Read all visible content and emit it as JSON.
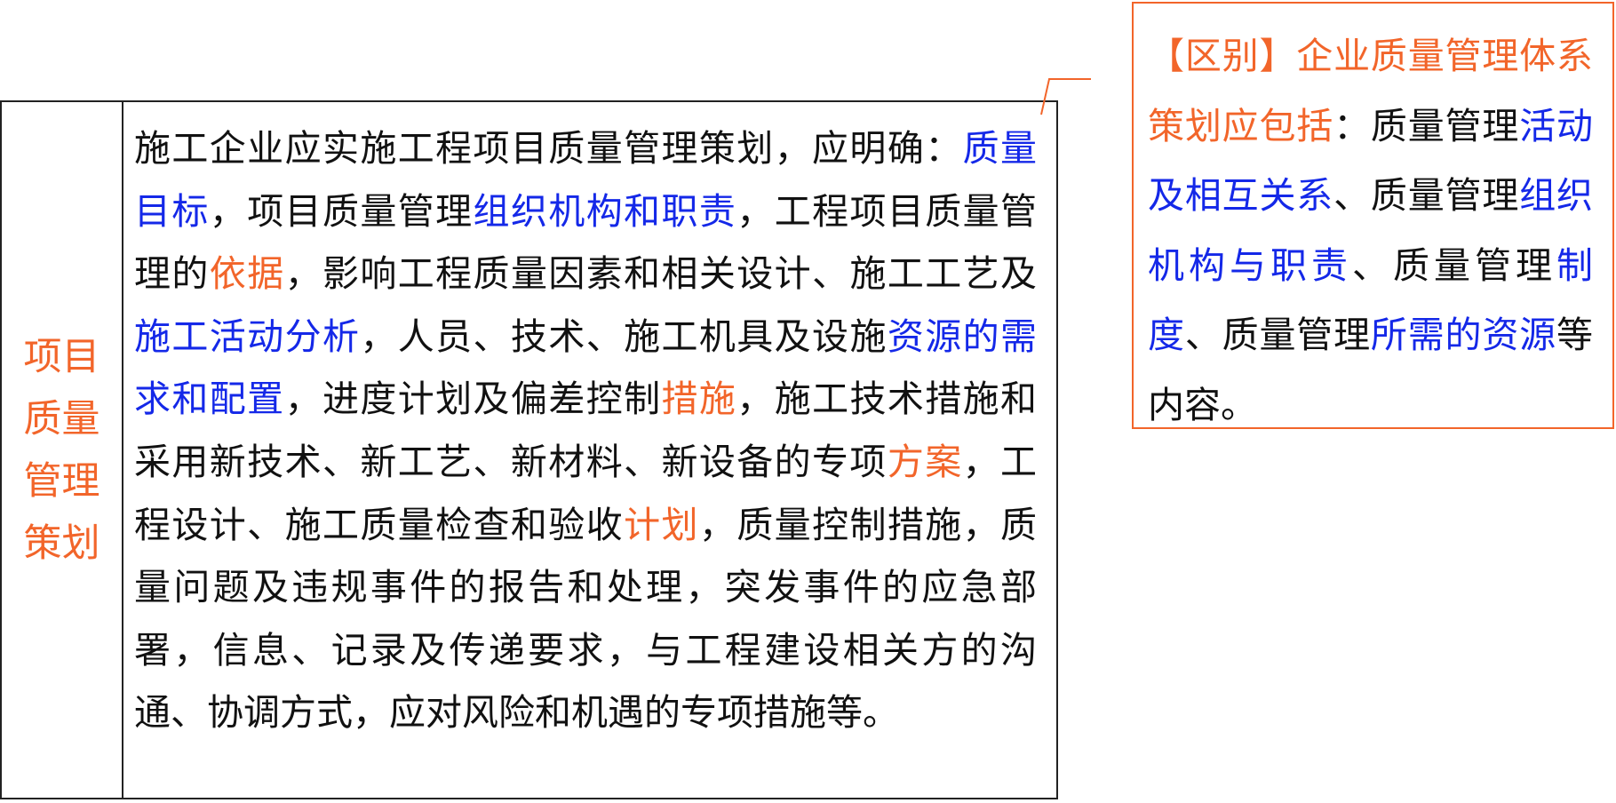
{
  "table": {
    "label": "项目质量管理策划",
    "content_segments": [
      {
        "text": "施工企业应实施工程项目质量管理策划，应明确：",
        "style": "normal"
      },
      {
        "text": "质量目标",
        "style": "blue"
      },
      {
        "text": "，项目质量管理",
        "style": "normal"
      },
      {
        "text": "组织机构和职责",
        "style": "blue"
      },
      {
        "text": "，工程项目质量管理的",
        "style": "normal"
      },
      {
        "text": "依据",
        "style": "orange"
      },
      {
        "text": "，影响工程质量因素和相关设计、施工工艺及",
        "style": "normal"
      },
      {
        "text": "施工活动分析",
        "style": "blue"
      },
      {
        "text": "，人员、技术、施工机具及设施",
        "style": "normal"
      },
      {
        "text": "资源的需求和配置",
        "style": "blue"
      },
      {
        "text": "，进度计划及偏差控制",
        "style": "normal"
      },
      {
        "text": "措施",
        "style": "orange"
      },
      {
        "text": "，施工技术措施和采用新技术、新工艺、新材料、新设备的专项",
        "style": "normal"
      },
      {
        "text": "方案",
        "style": "orange"
      },
      {
        "text": "，工程设计、施工质量检查和验收",
        "style": "normal"
      },
      {
        "text": "计划",
        "style": "orange"
      },
      {
        "text": "，质量控制措施，质量问题及违规事件的报告和处理，突发事件的应急部署，信息、记录及传递要求，与工程建设相关方的沟通、协调方式，应对风险和机遇的专项措施等。",
        "style": "normal"
      }
    ]
  },
  "note": {
    "segments": [
      {
        "text": "【区别】企业质量管理体系策划应包括",
        "style": "orange"
      },
      {
        "text": "：质量管理",
        "style": "normal"
      },
      {
        "text": "活动及相互关系",
        "style": "blue"
      },
      {
        "text": "、质量管理",
        "style": "normal"
      },
      {
        "text": "组织机构与职责",
        "style": "blue"
      },
      {
        "text": "、质量管理",
        "style": "normal"
      },
      {
        "text": "制度",
        "style": "blue"
      },
      {
        "text": "、质量管理",
        "style": "normal"
      },
      {
        "text": "所需的资源",
        "style": "blue"
      },
      {
        "text": "等内容。",
        "style": "normal"
      }
    ]
  },
  "colors": {
    "blue": "#1428e8",
    "orange": "#f2652a",
    "border": "#222222",
    "text": "#111111"
  }
}
